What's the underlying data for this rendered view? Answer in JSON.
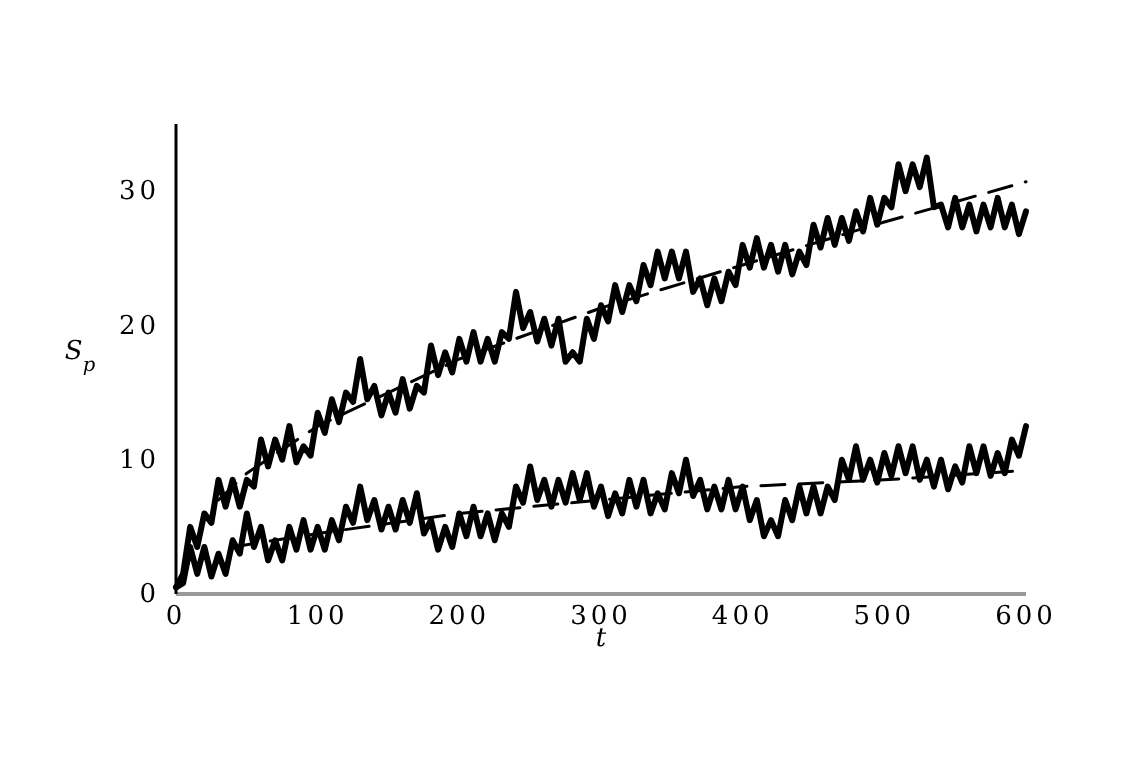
{
  "chart_data": {
    "type": "line",
    "xlabel": "t",
    "ylabel": "S$_{p}$",
    "xlim": [
      0,
      600
    ],
    "ylim": [
      0,
      35
    ],
    "xticks": [
      0,
      100,
      200,
      300,
      400,
      500,
      600
    ],
    "yticks": [
      0,
      10,
      20,
      30
    ],
    "marker": "none",
    "line_style": "solid",
    "x": [
      0,
      5,
      10,
      15,
      20,
      25,
      30,
      35,
      40,
      45,
      50,
      55,
      60,
      65,
      70,
      75,
      80,
      85,
      90,
      95,
      100,
      105,
      110,
      115,
      120,
      125,
      130,
      135,
      140,
      145,
      150,
      155,
      160,
      165,
      170,
      175,
      180,
      185,
      190,
      195,
      200,
      205,
      210,
      215,
      220,
      225,
      230,
      235,
      240,
      245,
      250,
      255,
      260,
      265,
      270,
      275,
      280,
      285,
      290,
      295,
      300,
      305,
      310,
      315,
      320,
      325,
      330,
      335,
      340,
      345,
      350,
      355,
      360,
      365,
      370,
      375,
      380,
      385,
      390,
      395,
      400,
      405,
      410,
      415,
      420,
      425,
      430,
      435,
      440,
      445,
      450,
      455,
      460,
      465,
      470,
      475,
      480,
      485,
      490,
      495,
      500,
      505,
      510,
      515,
      520,
      525,
      530,
      535,
      540,
      545,
      550,
      555,
      560,
      565,
      570,
      575,
      580,
      585,
      590,
      595,
      600
    ],
    "series": [
      {
        "color": "#000000",
        "values": [
          0.5,
          1.5,
          5,
          3.5,
          6,
          5.3,
          8.5,
          6.5,
          8.5,
          6.5,
          8.5,
          8,
          11.5,
          9.5,
          11.5,
          10,
          12.5,
          9.8,
          11,
          10.3,
          13.5,
          12,
          14.5,
          12.8,
          15,
          14.3,
          17.5,
          14.5,
          15.5,
          13.3,
          15,
          13.5,
          16,
          13.8,
          15.5,
          15,
          18.5,
          16.3,
          18,
          16.5,
          19,
          17.3,
          19.5,
          17.3,
          19,
          17.3,
          19.5,
          19,
          22.5,
          19.8,
          21,
          18.8,
          20.5,
          18.5,
          20.5,
          17.3,
          18,
          17.3,
          20.5,
          19,
          21.5,
          20.3,
          23,
          21,
          23,
          21.8,
          24.5,
          23,
          25.5,
          23.5,
          25.5,
          23.5,
          25.5,
          22.5,
          23.5,
          21.5,
          23.5,
          21.8,
          24,
          23,
          26,
          24.3,
          26.5,
          24.3,
          26,
          24,
          26,
          23.8,
          25.5,
          24.5,
          27.5,
          25.8,
          28,
          26,
          28,
          26.3,
          28.5,
          27,
          29.5,
          27.5,
          29.5,
          28.8,
          32,
          30,
          32,
          30.3,
          32.5,
          28.8,
          29,
          27.3,
          29.5,
          27.3,
          29,
          27,
          29,
          27.3,
          29.5,
          27.3,
          29,
          26.8,
          28.5
        ]
      },
      {
        "color": "#000000",
        "values": [
          0.5,
          0.8,
          3.5,
          1.5,
          3.5,
          1.3,
          3,
          1.5,
          4,
          3,
          6,
          3.5,
          5,
          2.5,
          4,
          2.5,
          5,
          3.3,
          5.5,
          3.3,
          5,
          3.3,
          5.5,
          4,
          6.5,
          5.3,
          8,
          5.5,
          7,
          4.8,
          6.5,
          4.8,
          7,
          5.3,
          7.5,
          4.5,
          5.5,
          3.3,
          5,
          3.5,
          6,
          4.3,
          6.5,
          4.3,
          6,
          4,
          6,
          5,
          8,
          6.8,
          9.5,
          7,
          8.5,
          6.5,
          8.5,
          6.8,
          9,
          7,
          9,
          6.5,
          8,
          5.8,
          7.5,
          6,
          8.5,
          6.5,
          8.5,
          6,
          7.5,
          6.3,
          9,
          7.5,
          10,
          7.3,
          8.5,
          6.3,
          8,
          6.3,
          8.5,
          6.3,
          8,
          5.5,
          7,
          4.3,
          5.5,
          4.3,
          7,
          5.5,
          8,
          6,
          8,
          6,
          8,
          7,
          10,
          8.5,
          11,
          8.5,
          10,
          8.3,
          10.5,
          8.8,
          11,
          9,
          11,
          8.5,
          10,
          8,
          10,
          7.8,
          9.5,
          8.3,
          11,
          9,
          11,
          8.8,
          10.5,
          9,
          11.5,
          10.3,
          12.5
        ]
      },
      {
        "color": "#000000",
        "line_style": "dashed",
        "x": [
          30,
          50,
          100,
          150,
          200,
          300,
          400,
          500,
          600
        ],
        "values": [
          7,
          9,
          12.5,
          15,
          17.5,
          21.3,
          24.5,
          27.7,
          30.7
        ]
      },
      {
        "color": "#000000",
        "line_style": "dashed",
        "x": [
          40,
          100,
          200,
          300,
          400,
          500,
          600
        ],
        "values": [
          3.5,
          4.5,
          6,
          7,
          8,
          8.5,
          9.2
        ]
      }
    ]
  }
}
